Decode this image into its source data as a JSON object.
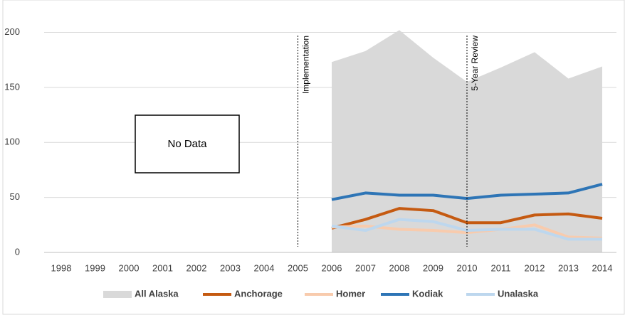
{
  "chart_data": {
    "type": "line",
    "categories": [
      "1998",
      "1999",
      "2000",
      "2001",
      "2002",
      "2003",
      "2004",
      "2005",
      "2006",
      "2007",
      "2008",
      "2009",
      "2010",
      "2011",
      "2012",
      "2013",
      "2014"
    ],
    "series": [
      {
        "name": "All Alaska",
        "color": "#d9d9d9",
        "style": "area",
        "values": [
          null,
          null,
          null,
          null,
          null,
          null,
          null,
          null,
          173,
          183,
          202,
          177,
          155,
          168,
          182,
          158,
          169
        ]
      },
      {
        "name": "Anchorage",
        "color": "#c55a11",
        "style": "line",
        "values": [
          null,
          null,
          null,
          null,
          null,
          null,
          null,
          null,
          22,
          30,
          40,
          38,
          27,
          27,
          34,
          35,
          31
        ]
      },
      {
        "name": "Homer",
        "color": "#f8cbad",
        "style": "line",
        "values": [
          null,
          null,
          null,
          null,
          null,
          null,
          null,
          null,
          23,
          24,
          21,
          20,
          18,
          21,
          25,
          14,
          13
        ]
      },
      {
        "name": "Kodiak",
        "color": "#2e75b6",
        "style": "line",
        "values": [
          null,
          null,
          null,
          null,
          null,
          null,
          null,
          null,
          48,
          54,
          52,
          52,
          49,
          52,
          53,
          54,
          62
        ]
      },
      {
        "name": "Unalaska",
        "color": "#bdd7ee",
        "style": "line",
        "values": [
          null,
          null,
          null,
          null,
          null,
          null,
          null,
          null,
          24,
          20,
          30,
          28,
          20,
          21,
          21,
          12,
          12
        ]
      }
    ],
    "ylim": [
      0,
      210
    ],
    "yticks": [
      0,
      50,
      100,
      150,
      200
    ],
    "grid": true,
    "annotations": [
      {
        "text": "Implementation",
        "category": "2005"
      },
      {
        "text": "5-Year Review",
        "category": "2010"
      }
    ],
    "no_data_label": "No Data",
    "legend": "bottom"
  }
}
